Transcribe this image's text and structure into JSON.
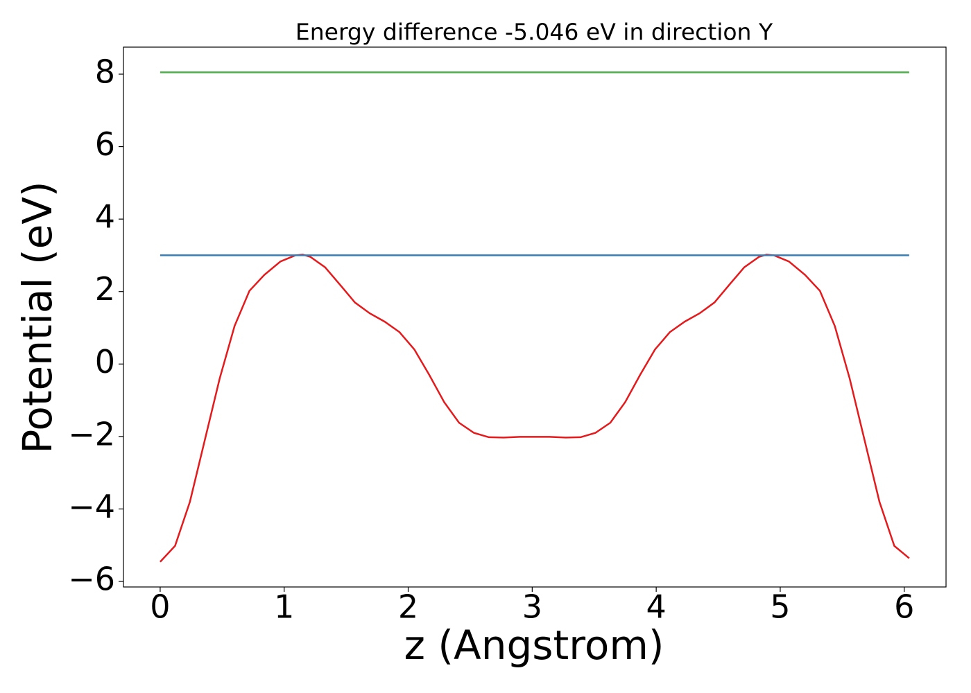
{
  "chart_data": {
    "type": "line",
    "title": "Energy difference -5.046 eV in direction Y",
    "xlabel": "z (Angstrom)",
    "ylabel": "Potential (eV)",
    "xlim": [
      -0.296,
      6.337
    ],
    "ylim": [
      -6.153,
      8.746
    ],
    "xticks": [
      0,
      1,
      2,
      3,
      4,
      5,
      6
    ],
    "yticks": [
      {
        "value": -6,
        "label": "−6"
      },
      {
        "value": -4,
        "label": "−4"
      },
      {
        "value": -2,
        "label": "−2"
      },
      0,
      2,
      4,
      6,
      8
    ],
    "grid": false,
    "series": [
      {
        "color": "#e41a1c",
        "x": [
          0,
          0.12,
          0.24,
          0.36,
          0.48,
          0.6,
          0.72,
          0.84,
          0.97,
          1.09,
          1.15,
          1.21,
          1.33,
          1.45,
          1.57,
          1.69,
          1.81,
          1.93,
          2.05,
          2.17,
          2.29,
          2.41,
          2.53,
          2.65,
          2.77,
          2.9,
          3.02,
          3.14,
          3.27,
          3.39,
          3.51,
          3.63,
          3.75,
          3.87,
          3.99,
          4.11,
          4.23,
          4.35,
          4.47,
          4.59,
          4.71,
          4.83,
          4.89,
          4.95,
          5.07,
          5.2,
          5.32,
          5.44,
          5.56,
          5.68,
          5.8,
          5.92,
          6.04
        ],
        "values": [
          -5.46,
          -5.02,
          -3.8,
          -2.1,
          -0.4,
          1.05,
          2.02,
          2.46,
          2.83,
          3.0,
          3.02,
          2.96,
          2.67,
          2.19,
          1.7,
          1.4,
          1.17,
          0.88,
          0.4,
          -0.3,
          -1.05,
          -1.62,
          -1.9,
          -2.02,
          -2.03,
          -2.01,
          -2.01,
          -2.01,
          -2.03,
          -2.02,
          -1.9,
          -1.62,
          -1.05,
          -0.3,
          0.4,
          0.88,
          1.17,
          1.4,
          1.7,
          2.19,
          2.67,
          2.96,
          3.02,
          3.0,
          2.83,
          2.46,
          2.02,
          1.05,
          -0.4,
          -2.1,
          -3.8,
          -5.02,
          -5.36
        ]
      },
      {
        "color": "#377eb8",
        "x": [
          0,
          6.04
        ],
        "values": [
          3.0,
          3.0
        ]
      },
      {
        "color": "#4daf4a",
        "x": [
          0,
          6.04
        ],
        "values": [
          8.05,
          8.05
        ]
      }
    ]
  }
}
